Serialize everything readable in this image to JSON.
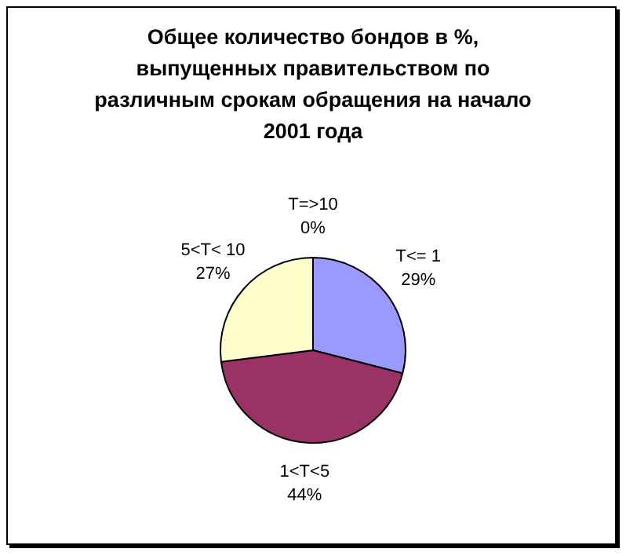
{
  "chart_data": {
    "type": "pie",
    "title": "Общее количество бондов в %, выпущенных правительством по различным срокам обращения на начало 2001 года",
    "categories": [
      "T<= 1",
      "1<T<5",
      "5<T< 10",
      "T=>10"
    ],
    "values": [
      29,
      44,
      27,
      0
    ],
    "colors": [
      "#9999ff",
      "#993366",
      "#ffffcc",
      "#ccffff"
    ],
    "value_labels": [
      "29%",
      "44%",
      "27%",
      "0%"
    ],
    "legend": false
  }
}
